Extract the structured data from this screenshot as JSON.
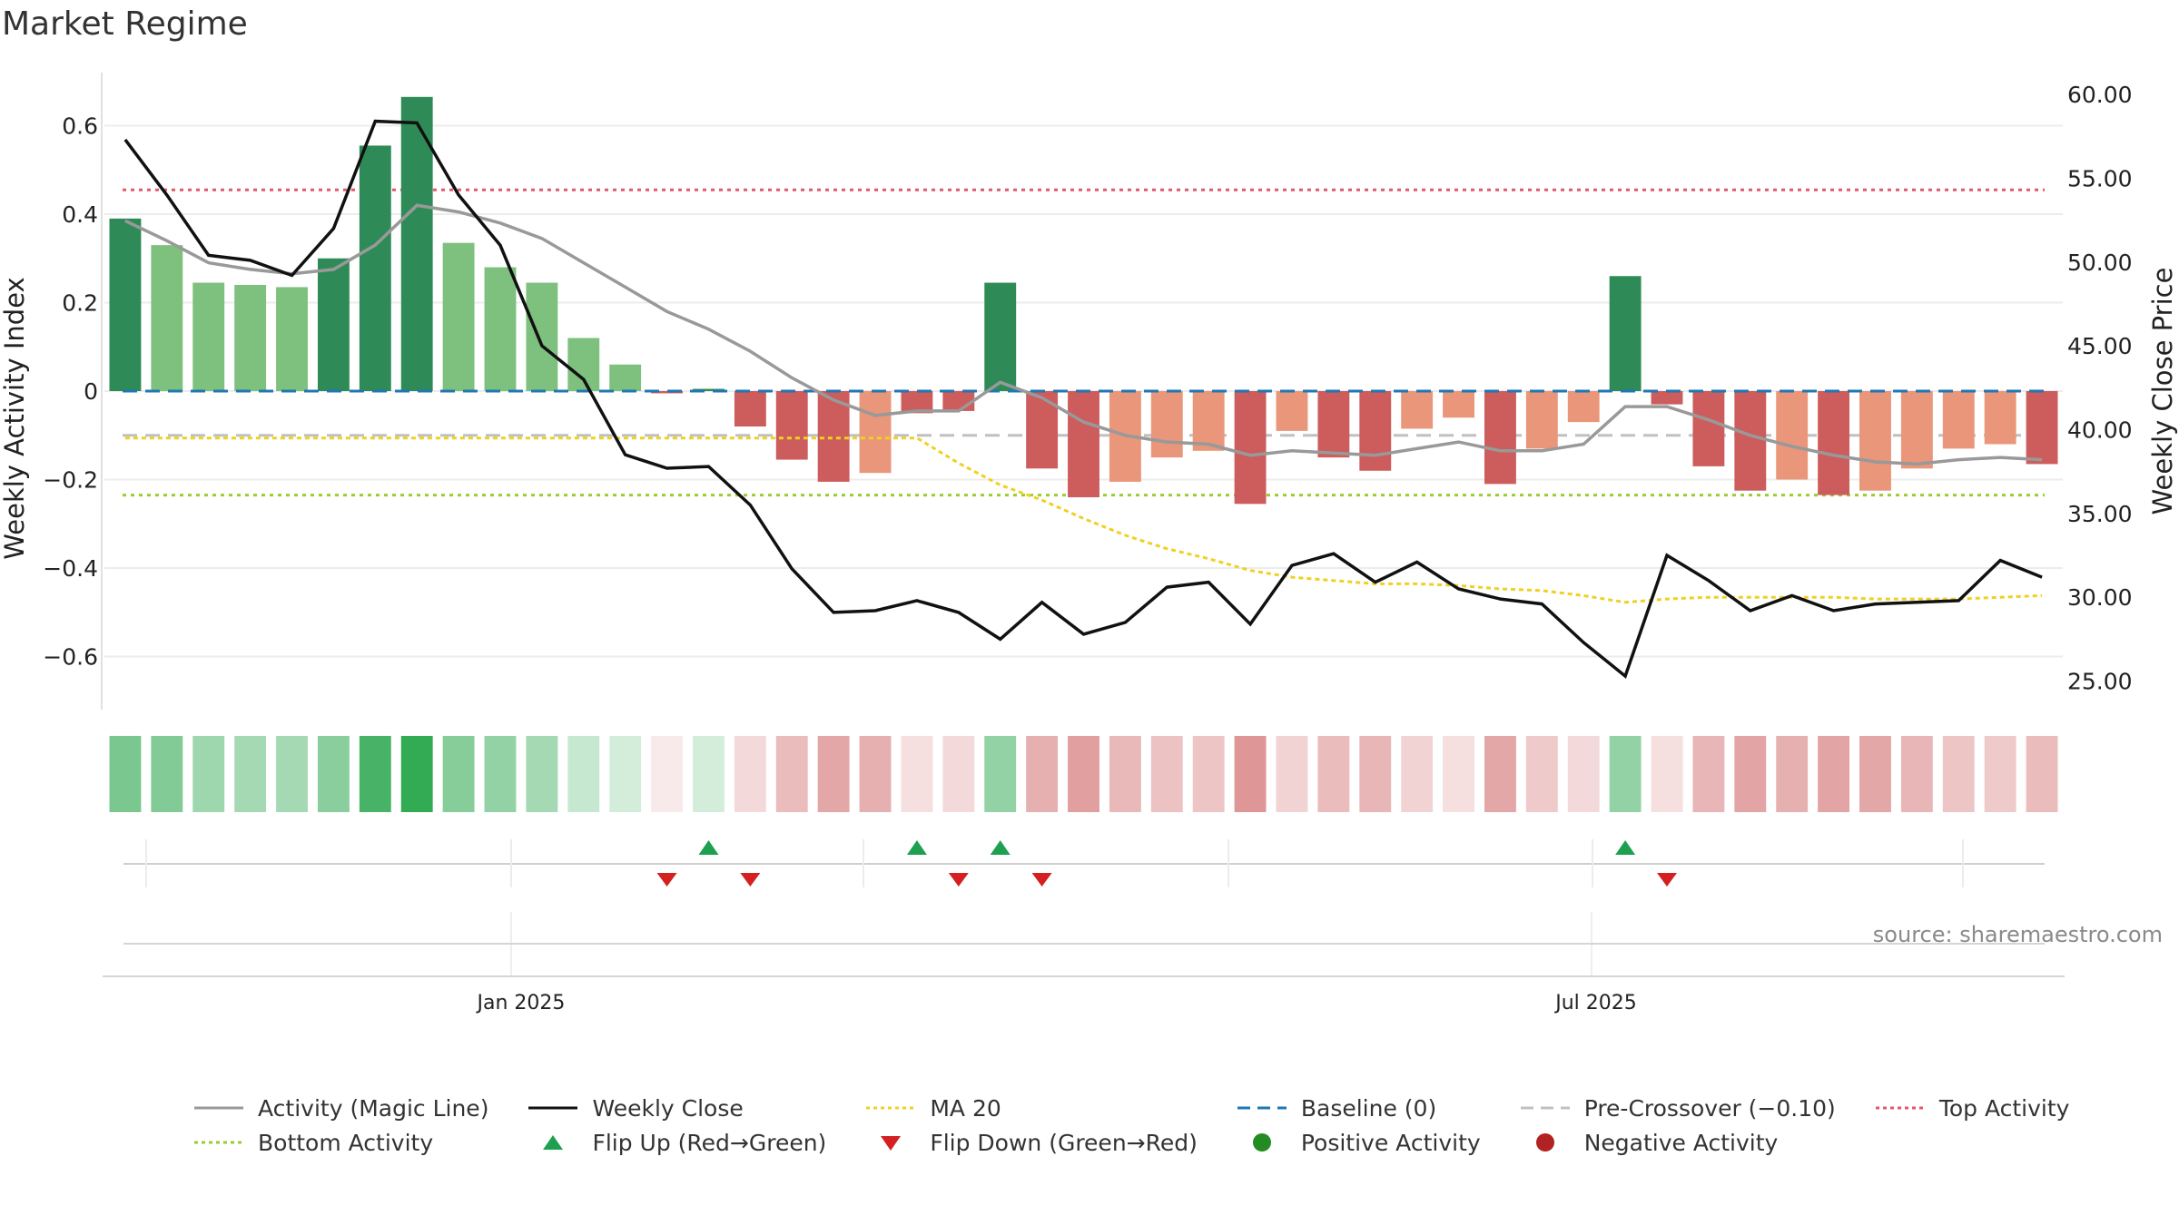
{
  "title": "Market Regime",
  "source": "source: sharemaestro.com",
  "colors": {
    "bar_pos_strong": "#2e8b57",
    "bar_pos_light": "#7ec07e",
    "bar_neg_strong": "#cd5c5c",
    "bar_neg_light": "#e9967a",
    "magic": "#999999",
    "close": "#111111",
    "ma20": "#f0d020",
    "baseline": "#1f77b4",
    "precross": "#c0c0c0",
    "top": "#e05a6a",
    "bottom": "#9acd32",
    "flip_up": "#1fa050",
    "flip_down": "#d42020",
    "pos_dot": "#228b22",
    "neg_dot": "#b22222"
  },
  "legend": [
    {
      "label": "Activity (Magic Line)",
      "kind": "line",
      "color": "#999999",
      "dash": ""
    },
    {
      "label": "Weekly Close",
      "kind": "line",
      "color": "#111111",
      "dash": ""
    },
    {
      "label": "MA 20",
      "kind": "line",
      "color": "#f0d020",
      "dash": "4,4"
    },
    {
      "label": "Baseline (0)",
      "kind": "line",
      "color": "#1f77b4",
      "dash": "14,8"
    },
    {
      "label": "Pre-Crossover (−0.10)",
      "kind": "line",
      "color": "#c0c0c0",
      "dash": "14,8"
    },
    {
      "label": "Top Activity",
      "kind": "line",
      "color": "#e05a6a",
      "dash": "4,4"
    },
    {
      "label": "Bottom Activity",
      "kind": "line",
      "color": "#9acd32",
      "dash": "4,4"
    },
    {
      "label": "Flip Up (Red→Green)",
      "kind": "tri-up",
      "color": "#1fa050",
      "dash": ""
    },
    {
      "label": "Flip Down (Green→Red)",
      "kind": "tri-down",
      "color": "#d42020",
      "dash": ""
    },
    {
      "label": "Positive Activity",
      "kind": "dot",
      "color": "#228b22",
      "dash": ""
    },
    {
      "label": "Negative Activity",
      "kind": "dot",
      "color": "#b22222",
      "dash": ""
    }
  ],
  "chart_data": {
    "type": "bar",
    "title": "Market Regime",
    "ylabel": "Weekly Activity Index",
    "y2label": "Weekly Close Price",
    "ylim": [
      -0.72,
      0.72
    ],
    "y2lim": [
      23.3,
      61.3
    ],
    "yticks": [
      -0.6,
      -0.4,
      -0.2,
      0,
      0.2,
      0.4,
      0.6
    ],
    "ytick_labels": [
      "−0.6",
      "−0.4",
      "−0.2",
      "0",
      "0.2",
      "0.4",
      "0.6"
    ],
    "y2ticks": [
      25,
      30,
      35,
      40,
      45,
      50,
      55,
      60
    ],
    "y2tick_labels": [
      "25.00",
      "30.00",
      "35.00",
      "40.00",
      "45.00",
      "50.00",
      "55.00",
      "60.00"
    ],
    "xtick_labels": [
      {
        "label": "Jan 2025",
        "week": 9.5
      },
      {
        "label": "Jul 2025",
        "week": 35.3
      }
    ],
    "grid": true,
    "legend_position": "bottom",
    "activity": [
      0.39,
      0.33,
      0.245,
      0.24,
      0.235,
      0.3,
      0.555,
      0.665,
      0.335,
      0.28,
      0.245,
      0.12,
      0.06,
      -0.005,
      0.005,
      -0.08,
      -0.155,
      -0.205,
      -0.185,
      -0.05,
      -0.045,
      0.245,
      -0.175,
      -0.24,
      -0.205,
      -0.15,
      -0.135,
      -0.255,
      -0.09,
      -0.15,
      -0.18,
      -0.085,
      -0.06,
      -0.21,
      -0.13,
      -0.07,
      0.26,
      -0.03,
      -0.17,
      -0.225,
      -0.2,
      -0.235,
      -0.225,
      -0.175,
      -0.13,
      -0.12,
      -0.165
    ],
    "activity_strength": [
      "strong",
      "light",
      "light",
      "light",
      "light",
      "strong",
      "strong",
      "strong",
      "light",
      "light",
      "light",
      "light",
      "light",
      "strong",
      "strong",
      "strong",
      "strong",
      "strong",
      "light",
      "strong",
      "strong",
      "strong",
      "strong",
      "strong",
      "light",
      "light",
      "light",
      "strong",
      "light",
      "strong",
      "strong",
      "light",
      "light",
      "strong",
      "light",
      "light",
      "strong",
      "strong",
      "strong",
      "strong",
      "light",
      "strong",
      "light",
      "light",
      "light",
      "light",
      "strong"
    ],
    "magic_line": [
      0.385,
      0.34,
      0.29,
      0.275,
      0.265,
      0.275,
      0.33,
      0.42,
      0.405,
      0.38,
      0.345,
      0.29,
      0.235,
      0.18,
      0.14,
      0.09,
      0.03,
      -0.02,
      -0.055,
      -0.045,
      -0.045,
      0.02,
      -0.015,
      -0.07,
      -0.1,
      -0.115,
      -0.12,
      -0.145,
      -0.135,
      -0.14,
      -0.145,
      -0.13,
      -0.115,
      -0.135,
      -0.135,
      -0.12,
      -0.035,
      -0.035,
      -0.065,
      -0.1,
      -0.125,
      -0.145,
      -0.16,
      -0.165,
      -0.155,
      -0.15,
      -0.155
    ],
    "weekly_close": [
      57.3,
      54.0,
      50.4,
      50.1,
      49.2,
      52.0,
      58.4,
      58.3,
      54.0,
      51.0,
      45.0,
      43.0,
      38.5,
      37.7,
      37.8,
      35.5,
      31.7,
      29.1,
      29.2,
      29.8,
      29.1,
      27.5,
      29.7,
      27.8,
      28.5,
      30.6,
      30.9,
      28.4,
      31.9,
      32.6,
      30.9,
      32.1,
      30.5,
      29.9,
      29.6,
      27.3,
      25.3,
      32.5,
      31.0,
      29.2,
      30.1,
      29.2,
      29.6,
      29.7,
      29.8,
      32.2,
      31.2
    ],
    "ma20": [
      39.5,
      39.5,
      39.5,
      39.5,
      39.5,
      39.5,
      39.5,
      39.5,
      39.5,
      39.5,
      39.5,
      39.5,
      39.5,
      39.5,
      39.5,
      39.5,
      39.5,
      39.5,
      39.5,
      39.5,
      38.0,
      36.7,
      35.8,
      34.7,
      33.7,
      32.9,
      32.3,
      31.6,
      31.2,
      31.0,
      30.8,
      30.8,
      30.7,
      30.5,
      30.4,
      30.1,
      29.7,
      29.9,
      30.0,
      30.0,
      30.0,
      30.0,
      29.9,
      29.9,
      29.9,
      30.0,
      30.1
    ],
    "baseline": 0,
    "pre_crossover": -0.1,
    "top_activity": 0.455,
    "bottom_activity": -0.235,
    "regime_strength": [
      0.62,
      0.58,
      0.45,
      0.42,
      0.42,
      0.55,
      0.85,
      0.95,
      0.56,
      0.5,
      0.42,
      0.26,
      0.2,
      0.12,
      0.2,
      0.22,
      0.38,
      0.5,
      0.45,
      0.18,
      0.22,
      0.5,
      0.45,
      0.55,
      0.4,
      0.35,
      0.33,
      0.6,
      0.25,
      0.38,
      0.42,
      0.25,
      0.18,
      0.5,
      0.3,
      0.22,
      0.5,
      0.18,
      0.42,
      0.52,
      0.45,
      0.52,
      0.5,
      0.42,
      0.33,
      0.3,
      0.38
    ],
    "flip_up_weeks": [
      14,
      19,
      21,
      36
    ],
    "flip_down_weeks": [
      13,
      15,
      20,
      22,
      37
    ]
  }
}
